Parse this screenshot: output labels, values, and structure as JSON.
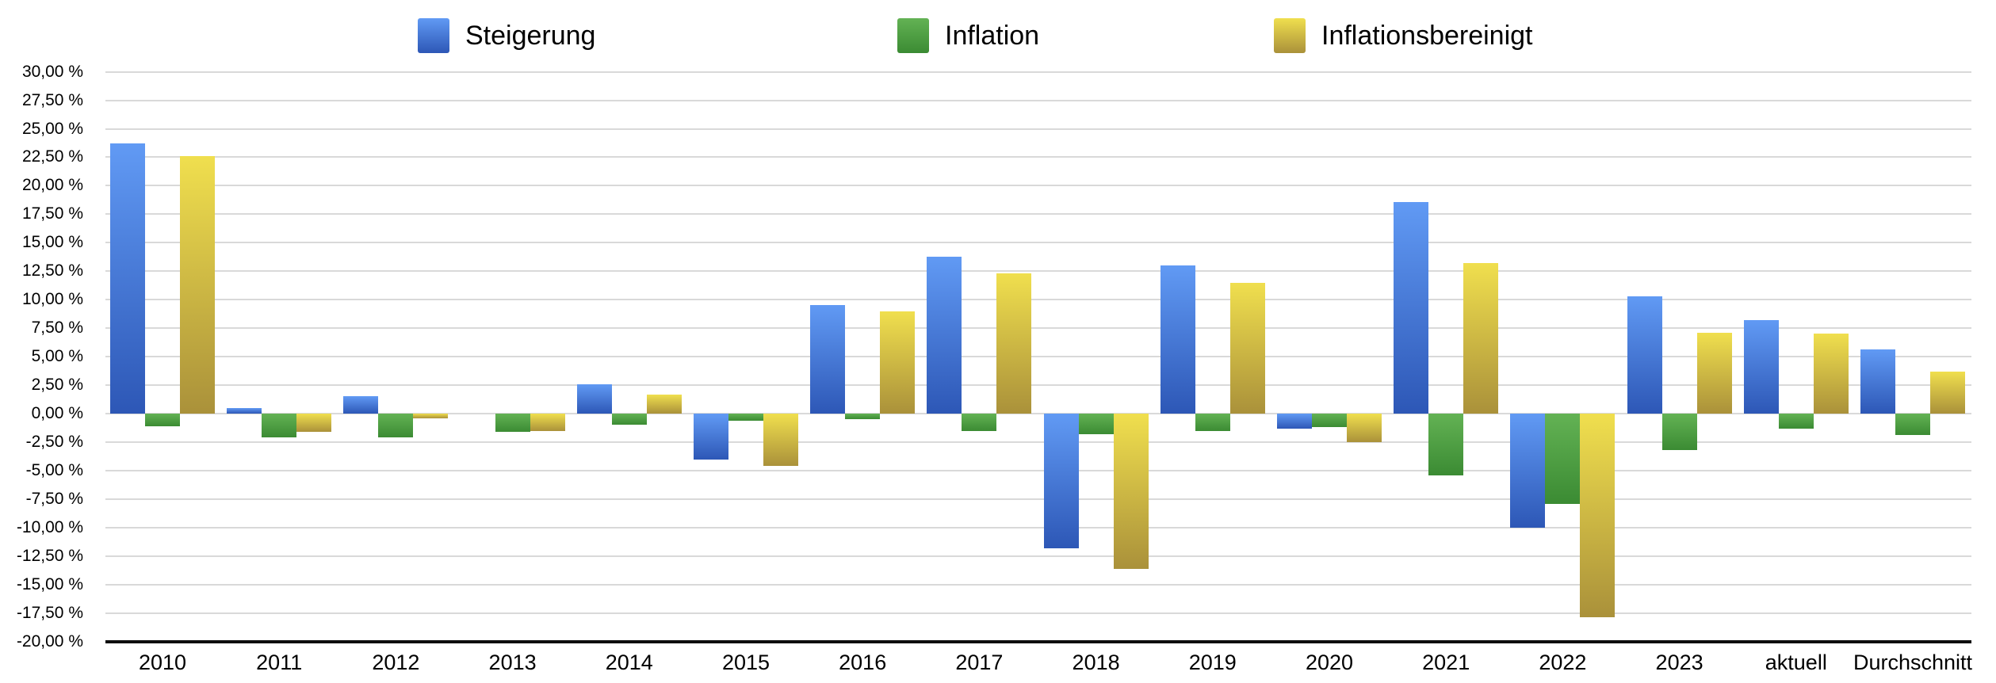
{
  "chart_data": {
    "type": "bar",
    "title": "",
    "xlabel": "",
    "ylabel": "",
    "categories": [
      "2010",
      "2011",
      "2012",
      "2013",
      "2014",
      "2015",
      "2016",
      "2017",
      "2018",
      "2019",
      "2020",
      "2021",
      "2022",
      "2023",
      "aktuell",
      "Durchschnitt"
    ],
    "series": [
      {
        "name": "Steigerung",
        "color_top": "#619af4",
        "color_bottom": "#2d57b6",
        "values": [
          23.7,
          0.5,
          1.5,
          0.0,
          2.6,
          -4.0,
          9.5,
          13.8,
          -11.8,
          13.0,
          -1.3,
          18.6,
          -10.0,
          10.3,
          8.2,
          5.6
        ]
      },
      {
        "name": "Inflation",
        "color_top": "#63b254",
        "color_bottom": "#3b8b33",
        "values": [
          -1.1,
          -2.1,
          -2.1,
          -1.6,
          -1.0,
          -0.6,
          -0.5,
          -1.5,
          -1.8,
          -1.5,
          -1.2,
          -5.4,
          -7.9,
          -3.2,
          -1.3,
          -1.9
        ]
      },
      {
        "name": "Inflationsbereinigt",
        "color_top": "#f0df4e",
        "color_bottom": "#aa913a",
        "values": [
          22.6,
          -1.6,
          -0.4,
          -1.5,
          1.7,
          -4.6,
          9.0,
          12.3,
          -13.6,
          11.5,
          -2.5,
          13.2,
          -17.9,
          7.1,
          7.0,
          3.7
        ]
      }
    ],
    "y_axis": {
      "min": -20,
      "max": 30,
      "step": 2.5,
      "decimals": 2,
      "decimal_separator": ",",
      "suffix": " %"
    },
    "grid": true,
    "legend_position": "top",
    "gridline_color": "#d9d9d9",
    "axis_line_color": "#0d0d0d",
    "background_color": "#ffffff"
  }
}
